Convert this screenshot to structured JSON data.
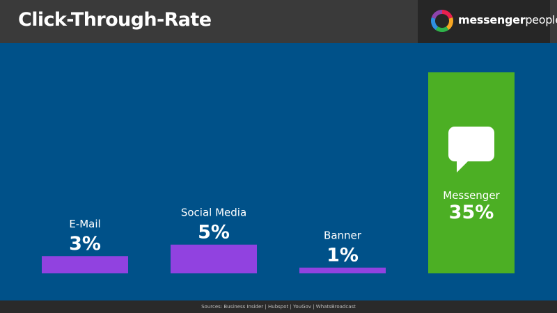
{
  "header": {
    "title": "Click-Through-Rate",
    "logo": {
      "bold_text": "messenger",
      "light_text": "people",
      "ring_colors": [
        "#e8204f",
        "#f6a623",
        "#2fb34a",
        "#2f8fe0",
        "#8e44ad"
      ]
    }
  },
  "chart_data": {
    "type": "bar",
    "title": "Click-Through-Rate",
    "categories": [
      "E-Mail",
      "Social Media",
      "Banner",
      "Messenger"
    ],
    "values": [
      3,
      5,
      1,
      35
    ],
    "value_labels": [
      "3%",
      "5%",
      "1%",
      "35%"
    ],
    "unit": "%",
    "ylim": [
      0,
      35
    ],
    "grid": false,
    "colors": [
      "#9142e0",
      "#9142e0",
      "#9142e0",
      "#4caf24"
    ],
    "highlight_icon": "chat-bubble-icon",
    "background_color": "#005189"
  },
  "footer": {
    "sources": "Sources: Business Insider | Hubspot | YouGov | WhatsBroadcast"
  }
}
